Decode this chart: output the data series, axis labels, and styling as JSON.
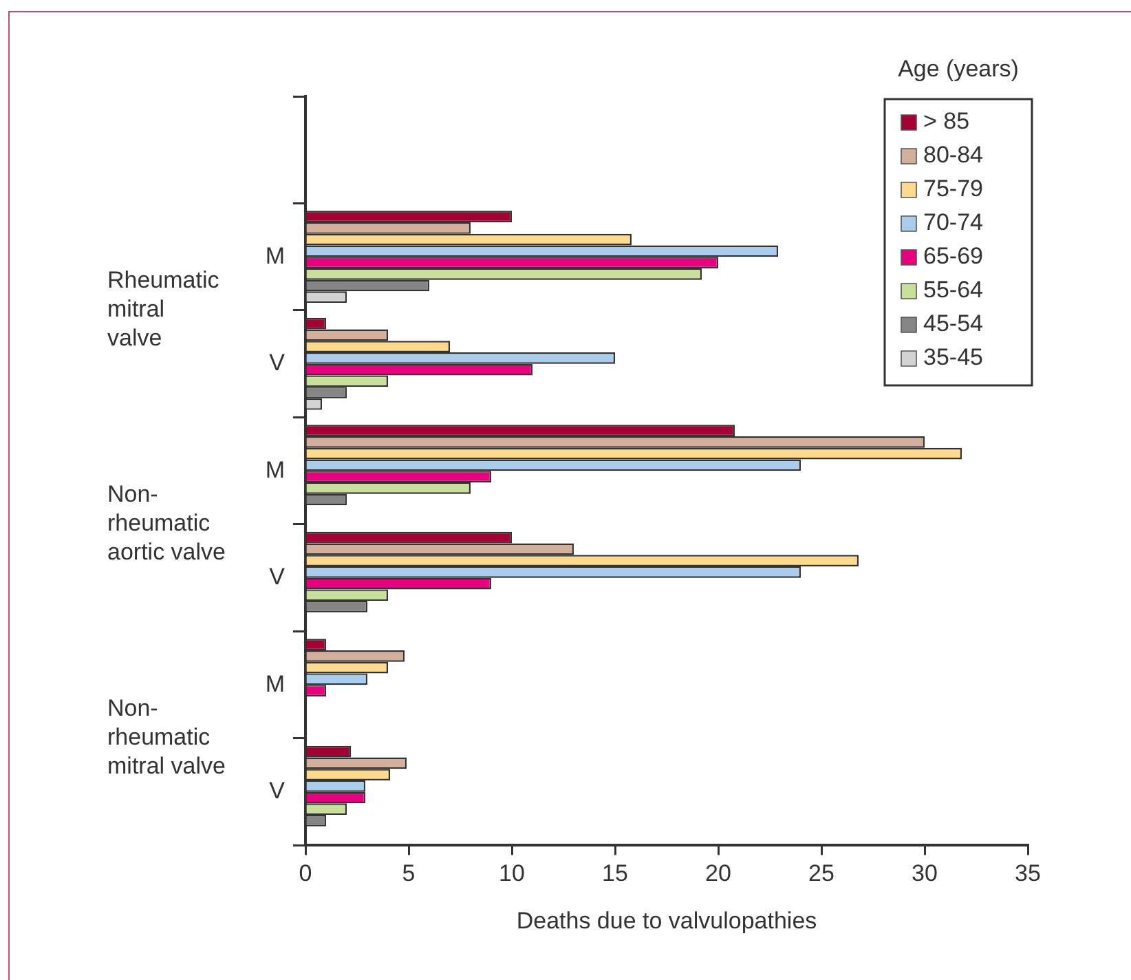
{
  "chart_data": {
    "type": "bar",
    "orientation": "horizontal",
    "xlabel": "Deaths due to valvulopathies",
    "legend_title": "Age (years)",
    "legend": "top right",
    "grid": false,
    "categories": [
      null,
      "M",
      "V",
      "M",
      "V",
      "M",
      "V"
    ],
    "annotations": [
      "Rheumatic\nmitral\nvalve",
      "Non-\nrheumatic\naortic valve",
      "Non-\nrheumatic\nmitral valve"
    ],
    "xlim": [
      0,
      35
    ],
    "xticks": [
      0,
      5,
      10,
      15,
      20,
      25,
      30,
      35
    ],
    "series": [
      {
        "name": "> 85",
        "color": "#a50034",
        "values": [
          null,
          10,
          1,
          20.8,
          10,
          1,
          2.2
        ]
      },
      {
        "name": "80-84",
        "color": "#d4b09c",
        "values": [
          null,
          8,
          4,
          30,
          13,
          4.8,
          4.9
        ]
      },
      {
        "name": "75-79",
        "color": "#ffd98c",
        "values": [
          null,
          15.8,
          7,
          31.8,
          26.8,
          4,
          4.1
        ]
      },
      {
        "name": "70-74",
        "color": "#aacdee",
        "values": [
          null,
          22.9,
          15,
          24,
          24,
          3,
          2.9
        ]
      },
      {
        "name": "65-69",
        "color": "#e8007f",
        "values": [
          null,
          20,
          11,
          9,
          9,
          1,
          2.9
        ]
      },
      {
        "name": "55-64",
        "color": "#c8e09c",
        "values": [
          null,
          19.2,
          4,
          8,
          4,
          null,
          2
        ]
      },
      {
        "name": "45-54",
        "color": "#858585",
        "values": [
          null,
          6,
          2,
          2,
          3,
          null,
          1
        ]
      },
      {
        "name": "35-45",
        "color": "#d3d3d3",
        "values": [
          null,
          2,
          0.8,
          null,
          null,
          null,
          null
        ]
      }
    ]
  }
}
